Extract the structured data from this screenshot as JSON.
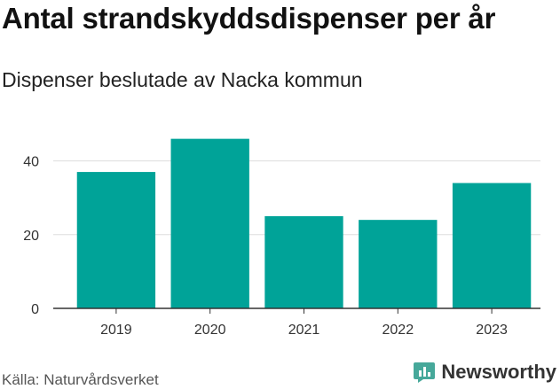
{
  "title": "Antal strandskyddsdispenser per år",
  "subtitle": "Dispenser beslutade av Nacka kommun",
  "source": "Källa: Naturvårdsverket",
  "brand": {
    "name": "Newsworthy",
    "icon": "newsworthy-logo-icon",
    "color": "#46a89a"
  },
  "colors": {
    "bar": "#00a398",
    "grid": "#dddddd",
    "axis": "#333333"
  },
  "chart_data": {
    "type": "bar",
    "categories": [
      "2019",
      "2020",
      "2021",
      "2022",
      "2023"
    ],
    "values": [
      37,
      46,
      25,
      24,
      34
    ],
    "yticks": [
      0,
      20,
      40
    ],
    "ylim": [
      0,
      50
    ],
    "grid": true
  }
}
